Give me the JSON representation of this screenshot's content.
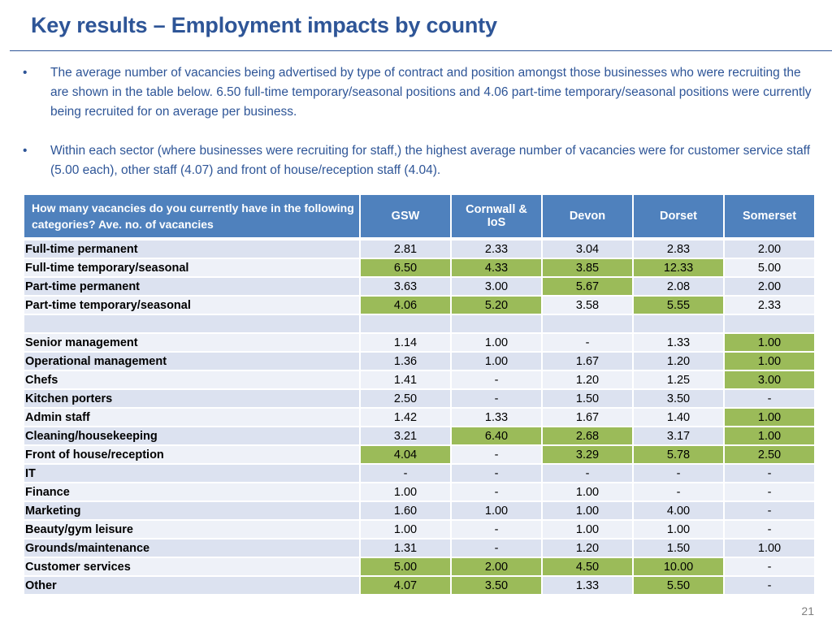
{
  "title": "Key results – Employment impacts by county",
  "bullets": [
    "The average number of vacancies being advertised by type of contract and position amongst those businesses who were recruiting the are shown in the table below.  6.50 full-time temporary/seasonal positions and 4.06 part-time temporary/seasonal positions were currently being recruited for on average per business.",
    "Within each sector (where businesses were recruiting for staff,) the highest average number of vacancies were for customer service staff (5.00 each), other staff (4.07) and front of house/reception staff (4.04)."
  ],
  "bullet_symbol": "•",
  "table": {
    "headers": [
      "How many vacancies do you currently have in the following categories? Ave. no. of vacancies",
      "GSW",
      "Cornwall & IoS",
      "Devon",
      "Dorset",
      "Somerset"
    ],
    "header_color": "#4F81BD",
    "highlight_color": "#9BBB59",
    "rows": [
      {
        "label": "Full-time permanent",
        "values": [
          "2.81",
          "2.33",
          "3.04",
          "2.83",
          "2.00"
        ],
        "highlight": [
          false,
          false,
          false,
          false,
          false
        ]
      },
      {
        "label": "Full-time temporary/seasonal",
        "values": [
          "6.50",
          "4.33",
          "3.85",
          "12.33",
          "5.00"
        ],
        "highlight": [
          true,
          true,
          true,
          true,
          false
        ]
      },
      {
        "label": "Part-time permanent",
        "values": [
          "3.63",
          "3.00",
          "5.67",
          "2.08",
          "2.00"
        ],
        "highlight": [
          false,
          false,
          true,
          false,
          false
        ]
      },
      {
        "label": "Part-time temporary/seasonal",
        "values": [
          "4.06",
          "5.20",
          "3.58",
          "5.55",
          "2.33"
        ],
        "highlight": [
          true,
          true,
          false,
          true,
          false
        ]
      },
      {
        "label": "",
        "values": [
          "",
          "",
          "",
          "",
          ""
        ],
        "highlight": [
          false,
          false,
          false,
          false,
          false
        ]
      },
      {
        "label": "Senior management",
        "values": [
          "1.14",
          "1.00",
          "-",
          "1.33",
          "1.00"
        ],
        "highlight": [
          false,
          false,
          false,
          false,
          true
        ]
      },
      {
        "label": "Operational management",
        "values": [
          "1.36",
          "1.00",
          "1.67",
          "1.20",
          "1.00"
        ],
        "highlight": [
          false,
          false,
          false,
          false,
          true
        ]
      },
      {
        "label": "Chefs",
        "values": [
          "1.41",
          "-",
          "1.20",
          "1.25",
          "3.00"
        ],
        "highlight": [
          false,
          false,
          false,
          false,
          true
        ]
      },
      {
        "label": "Kitchen porters",
        "values": [
          "2.50",
          "-",
          "1.50",
          "3.50",
          "-"
        ],
        "highlight": [
          false,
          false,
          false,
          false,
          false
        ]
      },
      {
        "label": "Admin staff",
        "values": [
          "1.42",
          "1.33",
          "1.67",
          "1.40",
          "1.00"
        ],
        "highlight": [
          false,
          false,
          false,
          false,
          true
        ]
      },
      {
        "label": "Cleaning/housekeeping",
        "values": [
          "3.21",
          "6.40",
          "2.68",
          "3.17",
          "1.00"
        ],
        "highlight": [
          false,
          true,
          true,
          false,
          true
        ]
      },
      {
        "label": "Front of house/reception",
        "values": [
          "4.04",
          "-",
          "3.29",
          "5.78",
          "2.50"
        ],
        "highlight": [
          true,
          false,
          true,
          true,
          true
        ]
      },
      {
        "label": "IT",
        "values": [
          "-",
          "-",
          "-",
          "-",
          "-"
        ],
        "highlight": [
          false,
          false,
          false,
          false,
          false
        ]
      },
      {
        "label": "Finance",
        "values": [
          "1.00",
          "-",
          "1.00",
          "-",
          "-"
        ],
        "highlight": [
          false,
          false,
          false,
          false,
          false
        ]
      },
      {
        "label": "Marketing",
        "values": [
          "1.60",
          "1.00",
          "1.00",
          "4.00",
          "-"
        ],
        "highlight": [
          false,
          false,
          false,
          false,
          false
        ]
      },
      {
        "label": "Beauty/gym leisure",
        "values": [
          "1.00",
          "-",
          "1.00",
          "1.00",
          "-"
        ],
        "highlight": [
          false,
          false,
          false,
          false,
          false
        ]
      },
      {
        "label": "Grounds/maintenance",
        "values": [
          "1.31",
          "-",
          "1.20",
          "1.50",
          "1.00"
        ],
        "highlight": [
          false,
          false,
          false,
          false,
          false
        ]
      },
      {
        "label": "Customer services",
        "values": [
          "5.00",
          "2.00",
          "4.50",
          "10.00",
          "-"
        ],
        "highlight": [
          true,
          true,
          true,
          true,
          false
        ]
      },
      {
        "label": "Other",
        "values": [
          "4.07",
          "3.50",
          "1.33",
          "5.50",
          "-"
        ],
        "highlight": [
          true,
          true,
          false,
          true,
          false
        ]
      }
    ]
  },
  "page_number": "21"
}
